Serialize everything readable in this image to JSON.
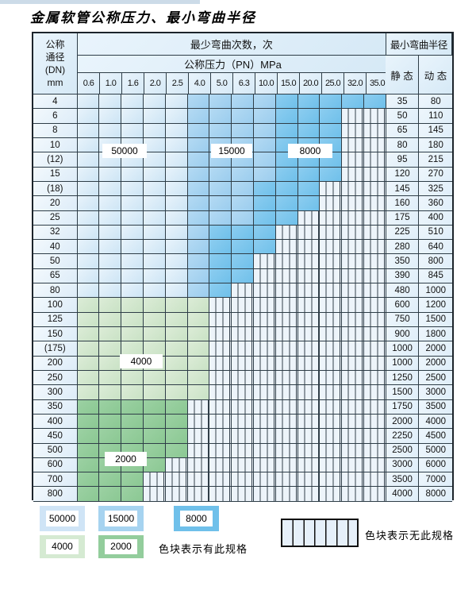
{
  "title": "金属软管公称压力、最小弯曲半径",
  "header": {
    "dn_lines": [
      "公称",
      "通径",
      "(DN)",
      "mm"
    ],
    "cycles_title": "最少弯曲次数，次",
    "pressure_title": "公称压力（PN）MPa",
    "pressures": [
      "0.6",
      "1.0",
      "1.6",
      "2.0",
      "2.5",
      "4.0",
      "5.0",
      "6.3",
      "10.0",
      "15.0",
      "20.0",
      "25.0",
      "32.0",
      "35.0"
    ],
    "radius_title": "最小弯曲半径",
    "static_label": "静 态",
    "dynamic_label": "动 态"
  },
  "cycle_labels": [
    "50000",
    "15000",
    "8000",
    "4000",
    "2000"
  ],
  "rows": [
    {
      "dn": "4",
      "static": "35",
      "dynamic": "80",
      "type": "blue",
      "end": 13,
      "mid": 5,
      "deep": 9
    },
    {
      "dn": "6",
      "static": "50",
      "dynamic": "110",
      "type": "blue",
      "end": 11,
      "mid": 5,
      "deep": 9
    },
    {
      "dn": "8",
      "static": "65",
      "dynamic": "145",
      "type": "blue",
      "end": 11,
      "mid": 5,
      "deep": 9
    },
    {
      "dn": "10",
      "static": "80",
      "dynamic": "180",
      "type": "blue",
      "end": 11,
      "mid": 5,
      "deep": 9
    },
    {
      "dn": "(12)",
      "static": "95",
      "dynamic": "215",
      "type": "blue",
      "end": 11,
      "mid": 5,
      "deep": 9
    },
    {
      "dn": "15",
      "static": "120",
      "dynamic": "270",
      "type": "blue",
      "end": 11,
      "mid": 5,
      "deep": 9
    },
    {
      "dn": "(18)",
      "static": "145",
      "dynamic": "325",
      "type": "blue",
      "end": 10,
      "mid": 5,
      "deep": 8
    },
    {
      "dn": "20",
      "static": "160",
      "dynamic": "360",
      "type": "blue",
      "end": 10,
      "mid": 5,
      "deep": 8
    },
    {
      "dn": "25",
      "static": "175",
      "dynamic": "400",
      "type": "blue",
      "end": 9,
      "mid": 5,
      "deep": 8
    },
    {
      "dn": "32",
      "static": "225",
      "dynamic": "510",
      "type": "blue",
      "end": 8,
      "mid": 5,
      "deep": 6
    },
    {
      "dn": "40",
      "static": "280",
      "dynamic": "640",
      "type": "blue",
      "end": 8,
      "mid": 5,
      "deep": 6
    },
    {
      "dn": "50",
      "static": "350",
      "dynamic": "800",
      "type": "blue",
      "end": 7,
      "mid": 5,
      "deep": 6
    },
    {
      "dn": "65",
      "static": "390",
      "dynamic": "845",
      "type": "blue",
      "end": 7,
      "mid": 5,
      "deep": 6
    },
    {
      "dn": "80",
      "static": "480",
      "dynamic": "1000",
      "type": "blue",
      "end": 6,
      "mid": 5,
      "deep": 6
    },
    {
      "dn": "100",
      "static": "600",
      "dynamic": "1200",
      "type": "g1",
      "end": 5
    },
    {
      "dn": "125",
      "static": "750",
      "dynamic": "1500",
      "type": "g1",
      "end": 5
    },
    {
      "dn": "150",
      "static": "900",
      "dynamic": "1800",
      "type": "g1",
      "end": 5
    },
    {
      "dn": "(175)",
      "static": "1000",
      "dynamic": "2000",
      "type": "g1",
      "end": 5
    },
    {
      "dn": "200",
      "static": "1000",
      "dynamic": "2000",
      "type": "g1",
      "end": 5
    },
    {
      "dn": "250",
      "static": "1250",
      "dynamic": "2500",
      "type": "g1",
      "end": 5
    },
    {
      "dn": "300",
      "static": "1500",
      "dynamic": "3000",
      "type": "g1",
      "end": 5
    },
    {
      "dn": "350",
      "static": "1750",
      "dynamic": "3500",
      "type": "g2",
      "end": 4
    },
    {
      "dn": "400",
      "static": "2000",
      "dynamic": "4000",
      "type": "g2",
      "end": 4
    },
    {
      "dn": "450",
      "static": "2250",
      "dynamic": "4500",
      "type": "g2",
      "end": 4
    },
    {
      "dn": "500",
      "static": "2500",
      "dynamic": "5000",
      "type": "g2",
      "end": 4
    },
    {
      "dn": "600",
      "static": "3000",
      "dynamic": "6000",
      "type": "g2",
      "end": 3
    },
    {
      "dn": "700",
      "static": "3500",
      "dynamic": "7000",
      "type": "g2",
      "end": 2
    },
    {
      "dn": "800",
      "static": "4000",
      "dynamic": "8000",
      "type": "g2",
      "end": 2
    }
  ],
  "legend": {
    "swatches": [
      {
        "value": "50000",
        "color": "#cfe4f6"
      },
      {
        "value": "15000",
        "color": "#a6d3f0"
      },
      {
        "value": "8000",
        "color": "#6fc0ea"
      },
      {
        "value": "4000",
        "color": "#d5ead2"
      },
      {
        "value": "2000",
        "color": "#93cd9c"
      }
    ],
    "available_text": "色块表示有此规格",
    "unavailable_text": "色块表示无此规格"
  },
  "colors": {
    "cycles_50000": "#cfe4f6",
    "cycles_15000": "#a6d3f0",
    "cycles_8000": "#6fc0ea",
    "cycles_4000": "#d5ead2",
    "cycles_2000": "#93cd9c",
    "no_spec_cell": "#e6f0fa",
    "grid_line": "#2e3d47"
  }
}
